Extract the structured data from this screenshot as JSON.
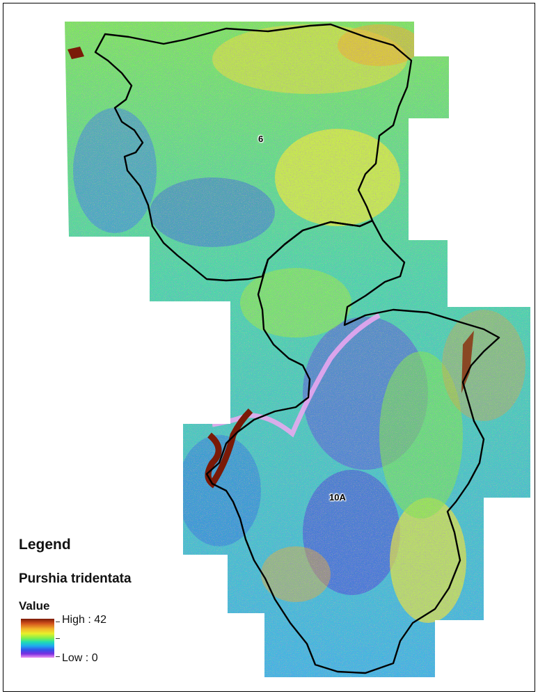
{
  "map": {
    "units": [
      {
        "id": "unit-6",
        "label": "6"
      },
      {
        "id": "unit-10a",
        "label": "10A"
      }
    ],
    "colors": {
      "raster_low": "#f29af2",
      "raster_mid": "#1fdcb4",
      "raster_high": "#7a1a08",
      "boundary": "#000000",
      "river": "#7a1a08"
    }
  },
  "legend": {
    "title": "Legend",
    "layer_name": "Purshia tridentata",
    "field": "Value",
    "high_label": "High : 42",
    "low_label": "Low : 0"
  }
}
